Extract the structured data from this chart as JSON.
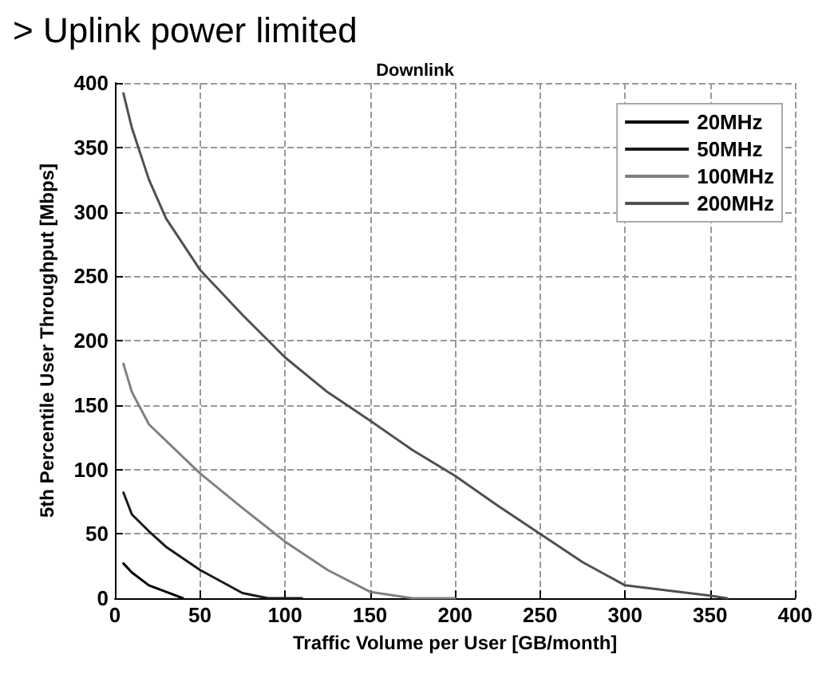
{
  "chart_data": {
    "type": "line",
    "title": "Downlink",
    "xlabel": "Traffic Volume per User [GB/month]",
    "ylabel": "5th Percentile User Throughput [Mbps]",
    "annotations": [
      "> Uplink power limited"
    ],
    "xlim": [
      0,
      400
    ],
    "xticks": [
      0,
      50,
      100,
      150,
      200,
      250,
      300,
      350,
      400
    ],
    "ylim": [
      0,
      400
    ],
    "yticks": [
      0,
      50,
      100,
      150,
      200,
      250,
      300,
      350,
      400
    ],
    "grid": true,
    "legend": "top right",
    "marker": "none",
    "line_style": "solid",
    "series": [
      {
        "name": "20MHz",
        "color": "#000000",
        "x": [
          5,
          10,
          20,
          30,
          40
        ],
        "values": [
          27,
          20,
          10,
          5,
          0
        ]
      },
      {
        "name": "50MHz",
        "color": "#1a1a1a",
        "x": [
          5,
          10,
          20,
          30,
          50,
          75,
          90,
          110
        ],
        "values": [
          82,
          65,
          52,
          40,
          22,
          4,
          0,
          0
        ]
      },
      {
        "name": "100MHz",
        "color": "#808080",
        "x": [
          5,
          10,
          20,
          50,
          75,
          100,
          125,
          150,
          175,
          200
        ],
        "values": [
          182,
          160,
          135,
          97,
          70,
          44,
          22,
          5,
          0,
          0
        ]
      },
      {
        "name": "200MHz",
        "color": "#505050",
        "x": [
          5,
          10,
          20,
          30,
          50,
          75,
          100,
          125,
          150,
          175,
          200,
          225,
          250,
          275,
          300,
          350,
          360
        ],
        "values": [
          392,
          365,
          325,
          295,
          255,
          220,
          187,
          160,
          138,
          115,
          95,
          72,
          50,
          28,
          10,
          2,
          0
        ]
      }
    ]
  }
}
